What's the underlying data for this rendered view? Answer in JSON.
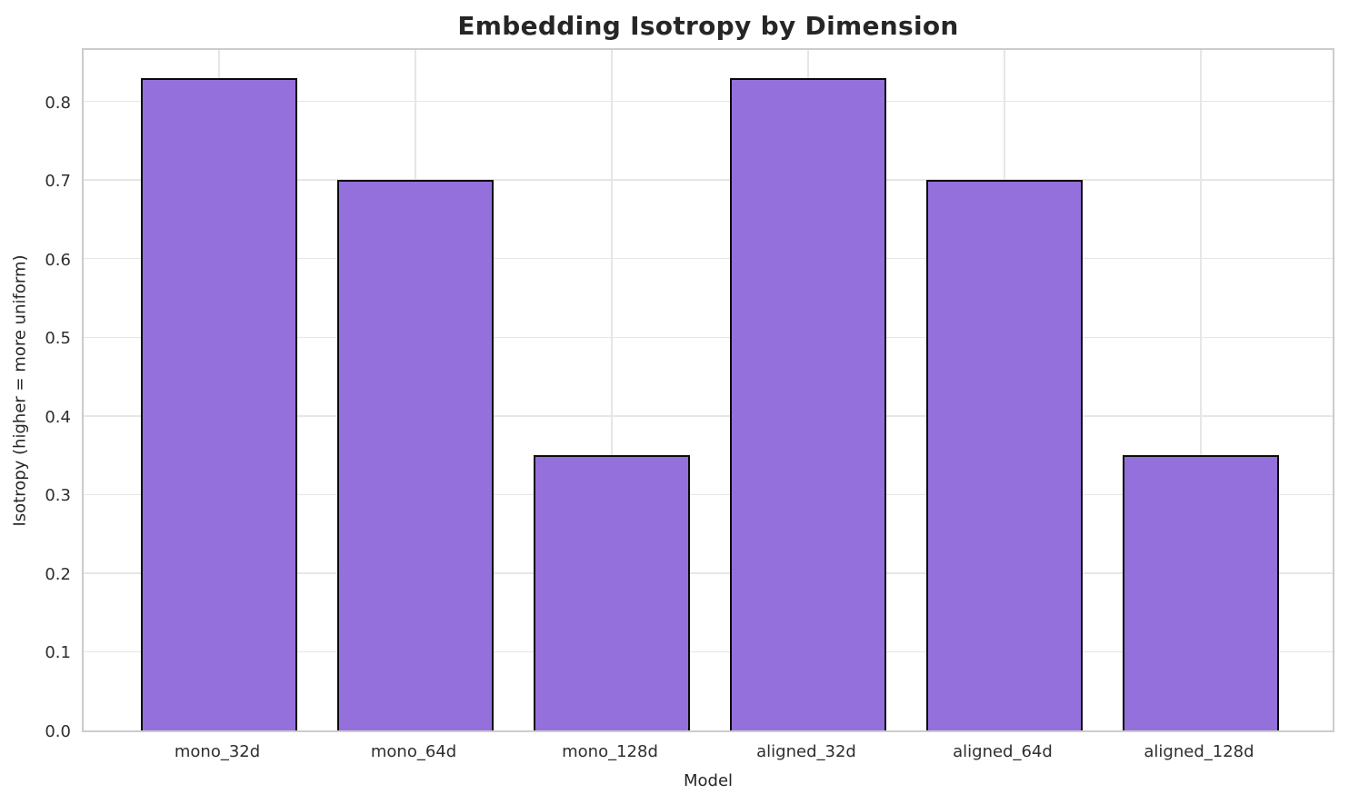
{
  "figure": {
    "title": "Embedding Isotropy by Dimension"
  },
  "chart_data": {
    "type": "bar",
    "title": "Embedding Isotropy by Dimension",
    "xlabel": "Model",
    "ylabel": "Isotropy (higher = more uniform)",
    "categories": [
      "mono_32d",
      "mono_64d",
      "mono_128d",
      "aligned_32d",
      "aligned_64d",
      "aligned_128d"
    ],
    "values": [
      0.83,
      0.7,
      0.35,
      0.83,
      0.7,
      0.35
    ],
    "ylim": [
      0,
      0.87
    ],
    "ytick_labels": [
      "0.0",
      "0.1",
      "0.2",
      "0.3",
      "0.4",
      "0.5",
      "0.6",
      "0.7",
      "0.8"
    ],
    "grid": true,
    "legend": null,
    "bar_color": "#9370DB",
    "bar_edge_color": "#0a0a0a",
    "grid_color": "#e6e6e6",
    "spine_color": "#cccccc",
    "text_color": "#262626"
  }
}
